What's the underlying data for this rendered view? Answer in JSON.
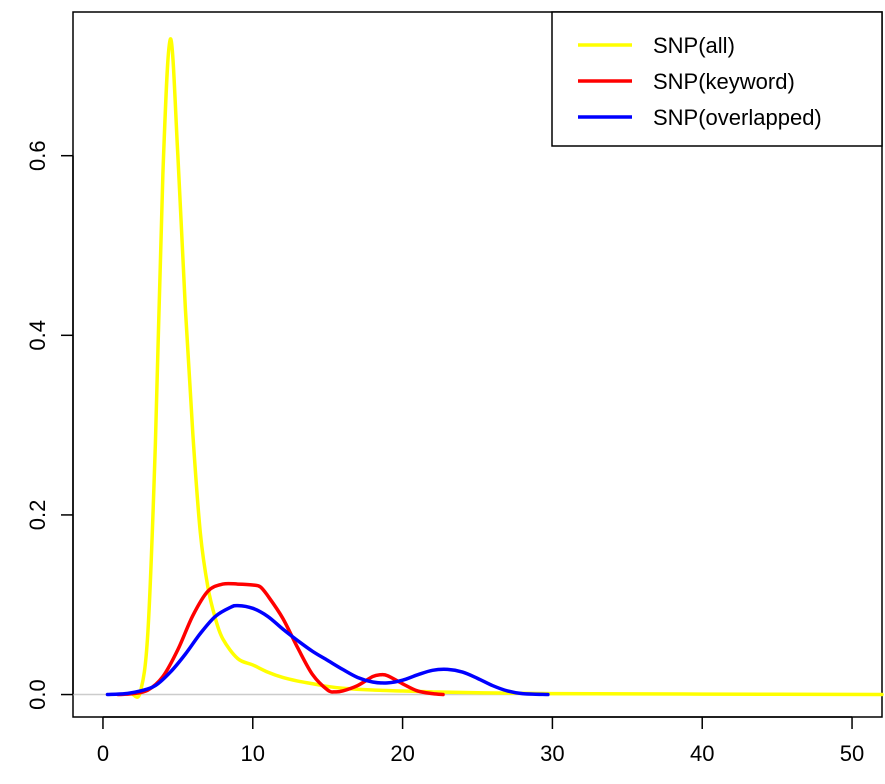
{
  "chart_data": {
    "type": "line",
    "title": "",
    "xlabel": "",
    "ylabel": "",
    "xlim": [
      -2,
      52
    ],
    "ylim": [
      -0.025,
      0.76
    ],
    "x_ticks": [
      0,
      10,
      20,
      30,
      40,
      50
    ],
    "y_ticks": [
      0.0,
      0.2,
      0.4,
      0.6
    ],
    "x_tick_labels": [
      "0",
      "10",
      "20",
      "30",
      "40",
      "50"
    ],
    "y_tick_labels": [
      "0.0",
      "0.2",
      "0.4",
      "0.6"
    ],
    "zero_line": true,
    "legend_position": "top-right",
    "series": [
      {
        "name": "SNP(all)",
        "color": "#ffff00",
        "points": [
          [
            2.0,
            0.0
          ],
          [
            2.5,
            0.003
          ],
          [
            3.0,
            0.07
          ],
          [
            3.5,
            0.28
          ],
          [
            4.0,
            0.58
          ],
          [
            4.5,
            0.73
          ],
          [
            5.0,
            0.6
          ],
          [
            5.5,
            0.43
          ],
          [
            6.0,
            0.29
          ],
          [
            6.5,
            0.18
          ],
          [
            7.0,
            0.12
          ],
          [
            7.5,
            0.085
          ],
          [
            8.0,
            0.062
          ],
          [
            9.0,
            0.04
          ],
          [
            10.0,
            0.033
          ],
          [
            11.0,
            0.025
          ],
          [
            12.0,
            0.019
          ],
          [
            13.0,
            0.015
          ],
          [
            14.0,
            0.012
          ],
          [
            15.0,
            0.009
          ],
          [
            16.0,
            0.007
          ],
          [
            18.0,
            0.005
          ],
          [
            20.0,
            0.004
          ],
          [
            22.0,
            0.003
          ],
          [
            25.0,
            0.002
          ],
          [
            30.0,
            0.001
          ],
          [
            40.0,
            0.0005
          ],
          [
            52.0,
            0.0
          ]
        ]
      },
      {
        "name": "SNP(keyword)",
        "color": "#ff0000",
        "points": [
          [
            1.0,
            0.0
          ],
          [
            2.0,
            0.001
          ],
          [
            3.0,
            0.005
          ],
          [
            4.0,
            0.02
          ],
          [
            5.0,
            0.05
          ],
          [
            6.0,
            0.088
          ],
          [
            7.0,
            0.115
          ],
          [
            8.0,
            0.123
          ],
          [
            9.0,
            0.123
          ],
          [
            10.0,
            0.122
          ],
          [
            10.5,
            0.12
          ],
          [
            11.0,
            0.11
          ],
          [
            12.0,
            0.085
          ],
          [
            13.0,
            0.052
          ],
          [
            14.0,
            0.022
          ],
          [
            15.0,
            0.005
          ],
          [
            15.5,
            0.003
          ],
          [
            16.0,
            0.004
          ],
          [
            17.0,
            0.01
          ],
          [
            18.0,
            0.02
          ],
          [
            18.5,
            0.022
          ],
          [
            19.0,
            0.021
          ],
          [
            20.0,
            0.012
          ],
          [
            21.0,
            0.004
          ],
          [
            22.0,
            0.001
          ],
          [
            22.7,
            0.0
          ]
        ]
      },
      {
        "name": "SNP(overlapped)",
        "color": "#0000ff",
        "points": [
          [
            0.3,
            0.0
          ],
          [
            1.5,
            0.001
          ],
          [
            2.5,
            0.004
          ],
          [
            3.5,
            0.01
          ],
          [
            4.5,
            0.025
          ],
          [
            5.5,
            0.045
          ],
          [
            6.5,
            0.068
          ],
          [
            7.5,
            0.087
          ],
          [
            8.5,
            0.097
          ],
          [
            9.0,
            0.099
          ],
          [
            10.0,
            0.096
          ],
          [
            11.0,
            0.087
          ],
          [
            12.0,
            0.073
          ],
          [
            13.0,
            0.06
          ],
          [
            14.0,
            0.048
          ],
          [
            15.0,
            0.038
          ],
          [
            16.0,
            0.028
          ],
          [
            17.0,
            0.019
          ],
          [
            18.0,
            0.014
          ],
          [
            19.0,
            0.013
          ],
          [
            20.0,
            0.016
          ],
          [
            21.0,
            0.022
          ],
          [
            22.0,
            0.027
          ],
          [
            23.0,
            0.028
          ],
          [
            24.0,
            0.025
          ],
          [
            25.0,
            0.018
          ],
          [
            26.0,
            0.01
          ],
          [
            27.0,
            0.004
          ],
          [
            28.0,
            0.001
          ],
          [
            29.7,
            0.0
          ]
        ]
      }
    ]
  }
}
